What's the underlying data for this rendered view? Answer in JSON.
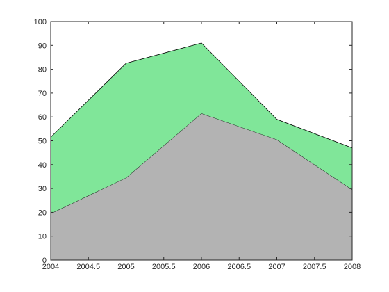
{
  "chart_data": {
    "type": "area",
    "stacked": true,
    "x": [
      2004,
      2005,
      2006,
      2007,
      2008
    ],
    "series": [
      {
        "values": [
          19.5,
          34.5,
          61.5,
          50.5,
          29.5
        ],
        "color": "#b3b3b3"
      },
      {
        "values": [
          32,
          48,
          29.5,
          8.5,
          17.5
        ],
        "color": "#80e699"
      }
    ],
    "xlim": [
      2004,
      2008
    ],
    "ylim": [
      0,
      100
    ],
    "xticks": [
      2004,
      2004.5,
      2005,
      2005.5,
      2006,
      2006.5,
      2007,
      2007.5,
      2008
    ],
    "xtick_labels": [
      "2004",
      "2004.5",
      "2005",
      "2005.5",
      "2006",
      "2006.5",
      "2007",
      "2007.5",
      "2008"
    ],
    "yticks": [
      0,
      10,
      20,
      30,
      40,
      50,
      60,
      70,
      80,
      90,
      100
    ],
    "ytick_labels": [
      "0",
      "10",
      "20",
      "30",
      "40",
      "50",
      "60",
      "70",
      "80",
      "90",
      "100"
    ],
    "grid": false,
    "box": true
  }
}
